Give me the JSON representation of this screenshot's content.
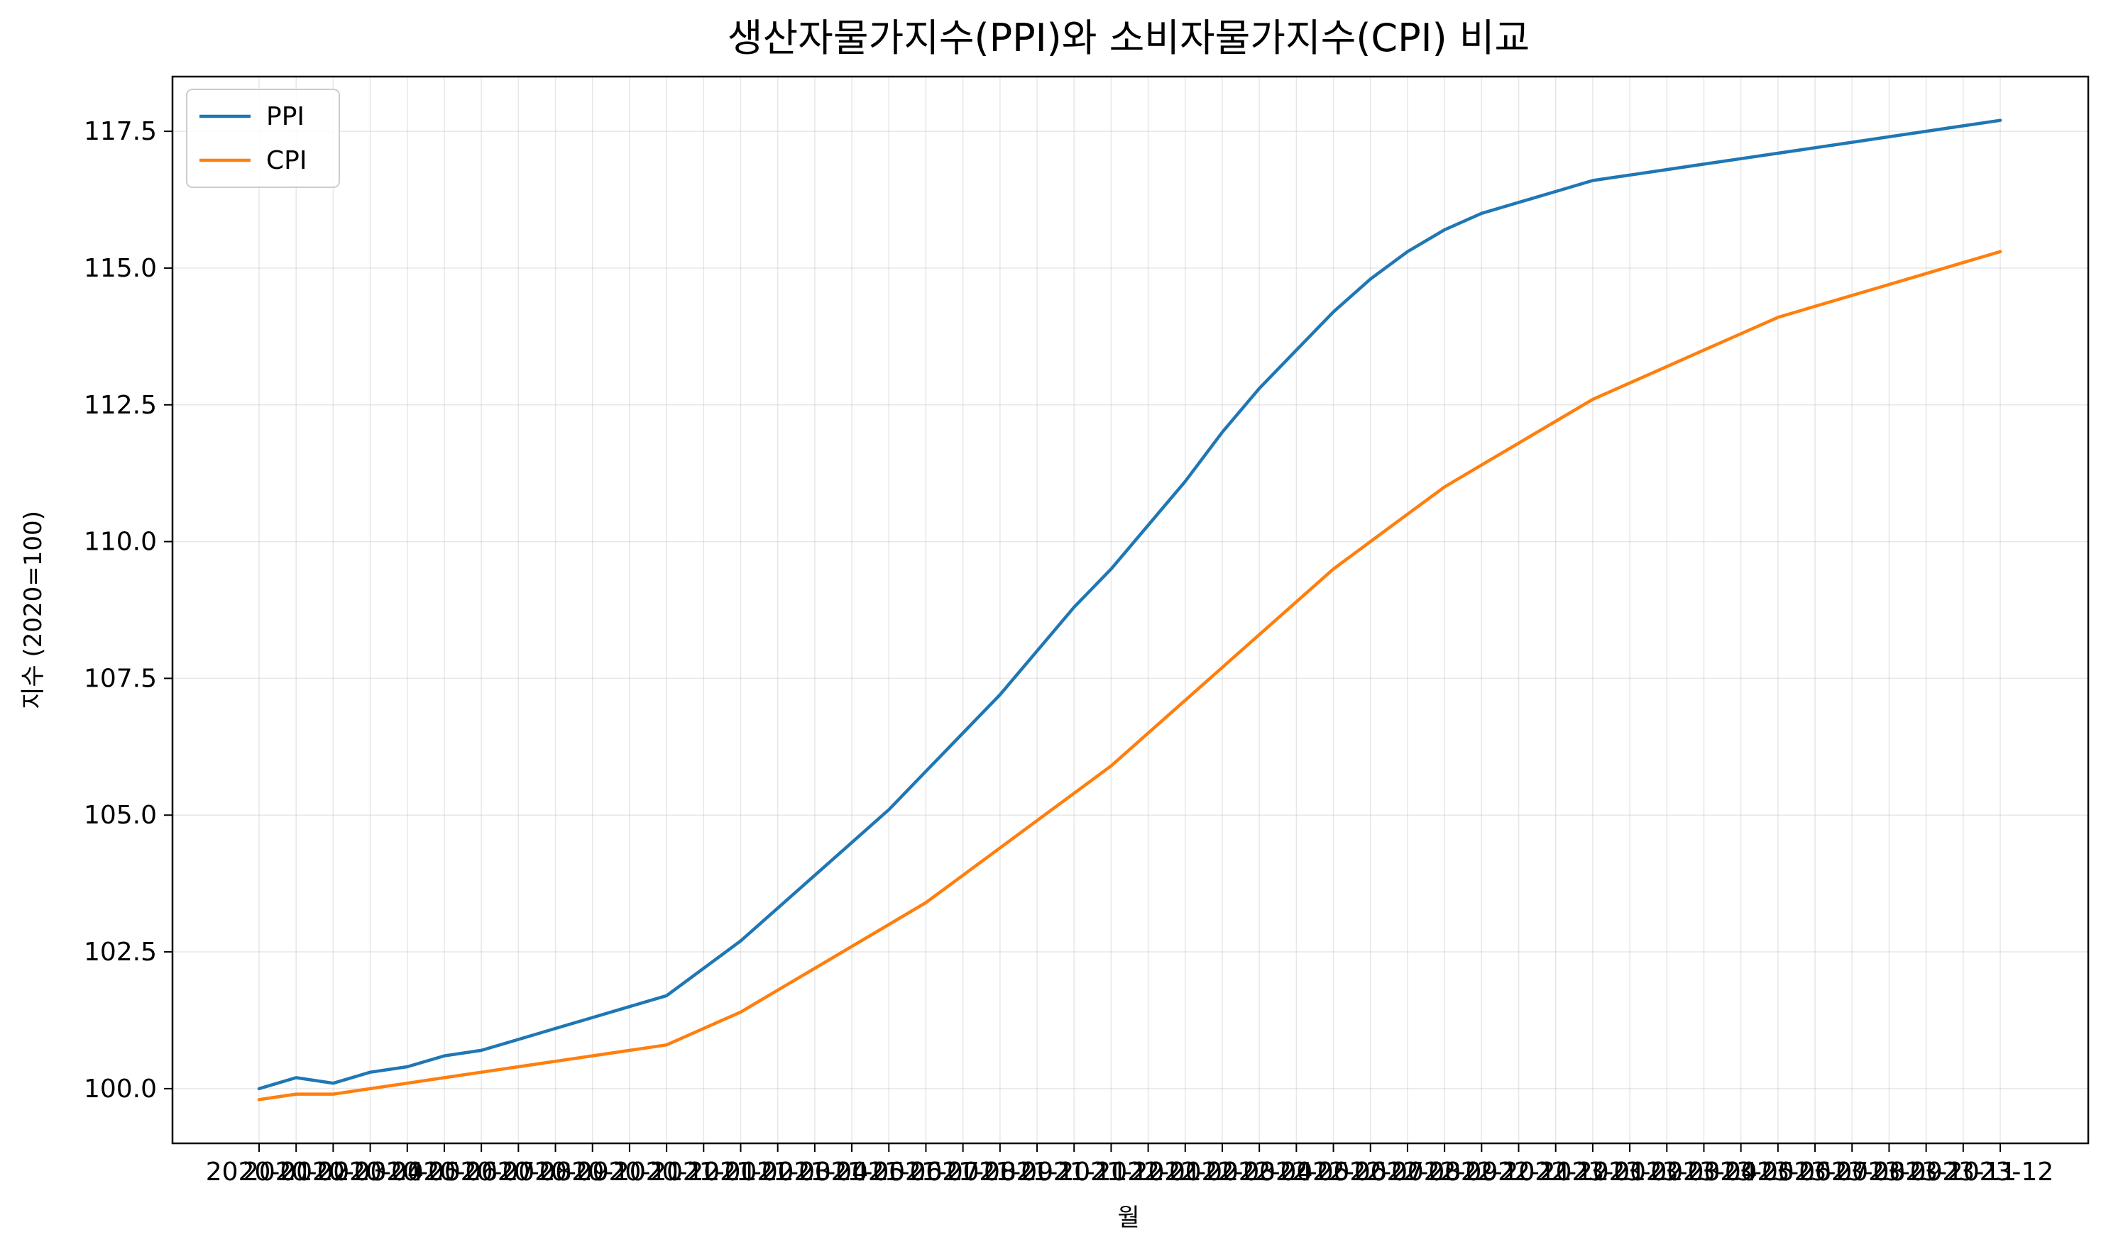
{
  "chart_data": {
    "type": "line",
    "title": "생산자물가지수(PPI)와 소비자물가지수(CPI) 비교",
    "xlabel": "월",
    "ylabel": "지수 (2020=100)",
    "ylim": [
      99.0,
      118.5
    ],
    "yticks": [
      "100.0",
      "102.5",
      "105.0",
      "107.5",
      "110.0",
      "112.5",
      "115.0",
      "117.5"
    ],
    "grid": true,
    "legend_position": "top-left",
    "x": [
      "2020-01",
      "2020-02",
      "2020-03",
      "2020-04",
      "2020-05",
      "2020-06",
      "2020-07",
      "2020-08",
      "2020-09",
      "2020-10",
      "2020-11",
      "2020-12",
      "2021-01",
      "2021-02",
      "2021-03",
      "2021-04",
      "2021-05",
      "2021-06",
      "2021-07",
      "2021-08",
      "2021-09",
      "2021-10",
      "2021-11",
      "2021-12",
      "2022-01",
      "2022-02",
      "2022-03",
      "2022-04",
      "2022-05",
      "2022-06",
      "2022-07",
      "2022-08",
      "2022-09",
      "2022-10",
      "2022-11",
      "2022-12",
      "2023-01",
      "2023-02",
      "2023-03",
      "2023-04",
      "2023-05",
      "2023-06",
      "2023-07",
      "2023-08",
      "2023-09",
      "2023-10",
      "2023-11",
      "2023-12"
    ],
    "series": [
      {
        "name": "PPI",
        "color": "#1f77b4",
        "values": [
          100.0,
          100.2,
          100.1,
          100.3,
          100.4,
          100.6,
          100.7,
          100.9,
          101.1,
          101.3,
          101.5,
          101.7,
          102.2,
          102.7,
          103.3,
          103.9,
          104.5,
          105.1,
          105.8,
          106.5,
          107.2,
          108.0,
          108.8,
          109.5,
          110.3,
          111.1,
          112.0,
          112.8,
          113.5,
          114.2,
          114.8,
          115.3,
          115.7,
          116.0,
          116.2,
          116.4,
          116.6,
          116.7,
          116.8,
          116.9,
          117.0,
          117.1,
          117.2,
          117.3,
          117.4,
          117.5,
          117.6,
          117.7
        ]
      },
      {
        "name": "CPI",
        "color": "#ff7f0e",
        "values": [
          99.8,
          99.9,
          99.9,
          100.0,
          100.1,
          100.2,
          100.3,
          100.4,
          100.5,
          100.6,
          100.7,
          100.8,
          101.1,
          101.4,
          101.8,
          102.2,
          102.6,
          103.0,
          103.4,
          103.9,
          104.4,
          104.9,
          105.4,
          105.9,
          106.5,
          107.1,
          107.7,
          108.3,
          108.9,
          109.5,
          110.0,
          110.5,
          111.0,
          111.4,
          111.8,
          112.2,
          112.6,
          112.9,
          113.2,
          113.5,
          113.8,
          114.1,
          114.3,
          114.5,
          114.7,
          114.9,
          115.1,
          115.3
        ]
      }
    ]
  }
}
